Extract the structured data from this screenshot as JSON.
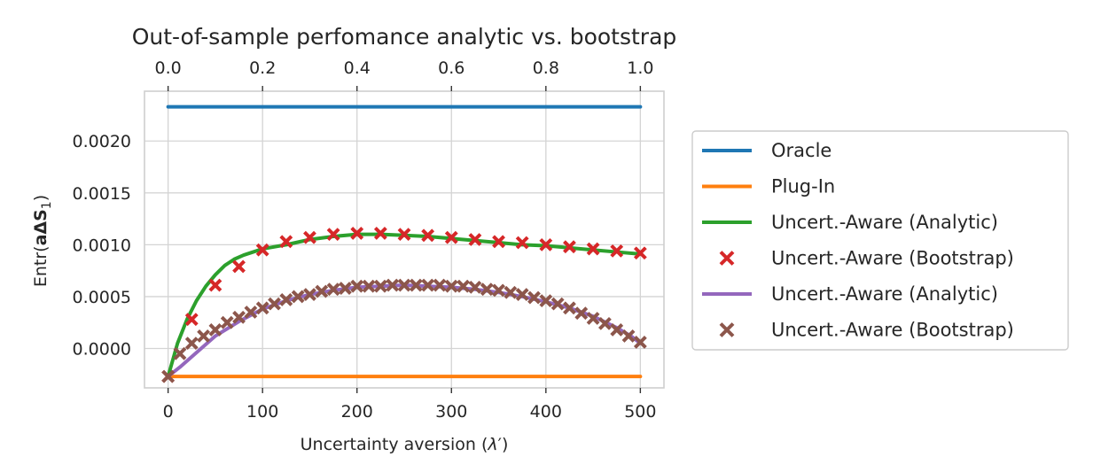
{
  "chart_data": {
    "type": "line",
    "title": "Out-of-sample perfomance analytic vs. bootstrap",
    "xlabel_prefix": "Uncertainty aversion (",
    "xlabel_symbol": "λ",
    "xlabel_prime": "′",
    "xlabel_suffix": ")",
    "ylabel_prefix": "Entr(",
    "ylabel_bold": "aΔS",
    "ylabel_sub": "1",
    "ylabel_suffix": ")",
    "xlim": [
      -25,
      525
    ],
    "ylim": [
      -0.00038,
      0.00248
    ],
    "x_ticks": [
      0,
      100,
      200,
      300,
      400,
      500
    ],
    "x_tick_labels": [
      "0",
      "100",
      "200",
      "300",
      "400",
      "500"
    ],
    "top_ticks": [
      0,
      0.2,
      0.4,
      0.6,
      0.8,
      1.0
    ],
    "top_tick_labels": [
      "0.0",
      "0.2",
      "0.4",
      "0.6",
      "0.8",
      "1.0"
    ],
    "y_ticks": [
      0,
      0.0005,
      0.001,
      0.0015,
      0.002
    ],
    "y_tick_labels": [
      "0.0000",
      "0.0005",
      "0.0010",
      "0.0015",
      "0.0020"
    ],
    "grid": true,
    "legend_position": "right",
    "series": [
      {
        "name": "Oracle",
        "kind": "line",
        "color": "#1f77b4",
        "x": [
          0,
          500
        ],
        "y": [
          0.00233,
          0.00233
        ]
      },
      {
        "name": "Plug-In",
        "kind": "line",
        "color": "#ff7f0e",
        "x": [
          0,
          500
        ],
        "y": [
          -0.00027,
          -0.00027
        ]
      },
      {
        "name": "Uncert.-Aware (Analytic)",
        "kind": "line",
        "color": "#2ca02c",
        "x": [
          0,
          10,
          20,
          30,
          40,
          50,
          60,
          70,
          80,
          90,
          100,
          125,
          150,
          175,
          200,
          225,
          250,
          275,
          300,
          325,
          350,
          375,
          400,
          425,
          450,
          475,
          500
        ],
        "y": [
          -0.00027,
          5e-05,
          0.00028,
          0.00046,
          0.0006,
          0.00071,
          0.0008,
          0.00086,
          0.0009,
          0.00093,
          0.00096,
          0.001,
          0.00105,
          0.00108,
          0.0011,
          0.0011,
          0.00109,
          0.00108,
          0.00106,
          0.00104,
          0.00102,
          0.001,
          0.00099,
          0.00097,
          0.00095,
          0.00093,
          0.00091
        ]
      },
      {
        "name": "Uncert.-Aware (Bootstrap)",
        "kind": "scatter",
        "color": "#d62728",
        "x": [
          0,
          25,
          50,
          75,
          100,
          125,
          150,
          175,
          200,
          225,
          250,
          275,
          300,
          325,
          350,
          375,
          400,
          425,
          450,
          475,
          500
        ],
        "y": [
          -0.00027,
          0.00028,
          0.00061,
          0.00079,
          0.00095,
          0.00103,
          0.00107,
          0.0011,
          0.00111,
          0.00111,
          0.0011,
          0.00109,
          0.00107,
          0.00105,
          0.00103,
          0.00102,
          0.001,
          0.00098,
          0.00096,
          0.00094,
          0.00092
        ]
      },
      {
        "name": "Uncert.-Aware (Analytic)",
        "kind": "line",
        "color": "#9467bd",
        "x": [
          0,
          12.5,
          25,
          50,
          75,
          100,
          125,
          150,
          175,
          200,
          225,
          250,
          275,
          300,
          325,
          350,
          375,
          400,
          425,
          450,
          475,
          490,
          500
        ],
        "y": [
          -0.00027,
          -0.00018,
          -8e-05,
          0.00012,
          0.00026,
          0.00038,
          0.00046,
          0.00052,
          0.00056,
          0.00059,
          0.0006,
          0.00061,
          0.0006,
          0.00059,
          0.00057,
          0.00054,
          0.0005,
          0.00045,
          0.00039,
          0.00031,
          0.0002,
          0.00012,
          5e-05
        ]
      },
      {
        "name": "Uncert.-Aware (Bootstrap)",
        "kind": "scatter",
        "color": "#8c564b",
        "x": [
          0,
          12.5,
          25,
          37.5,
          50,
          62.5,
          75,
          87.5,
          100,
          112.5,
          125,
          137.5,
          150,
          162.5,
          175,
          187.5,
          200,
          212.5,
          225,
          237.5,
          250,
          262.5,
          275,
          287.5,
          300,
          312.5,
          325,
          337.5,
          350,
          362.5,
          375,
          387.5,
          400,
          412.5,
          425,
          437.5,
          450,
          462.5,
          475,
          487.5,
          500
        ],
        "y": [
          -0.00027,
          -5e-05,
          5e-05,
          0.00012,
          0.00018,
          0.00025,
          0.0003,
          0.00035,
          0.00039,
          0.00043,
          0.00047,
          0.0005,
          0.00052,
          0.00055,
          0.00057,
          0.00058,
          0.0006,
          0.0006,
          0.0006,
          0.00061,
          0.00061,
          0.00061,
          0.00061,
          0.00061,
          0.0006,
          0.0006,
          0.00059,
          0.00057,
          0.00056,
          0.00054,
          0.00052,
          0.00049,
          0.00046,
          0.00043,
          0.00039,
          0.00034,
          0.00029,
          0.00024,
          0.00018,
          0.00012,
          6e-05
        ]
      }
    ]
  }
}
